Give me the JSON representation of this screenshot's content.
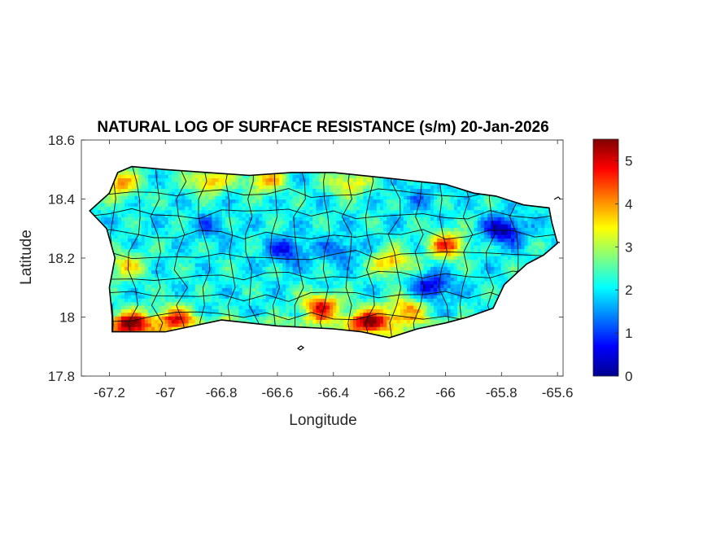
{
  "chart_data": {
    "type": "heatmap",
    "title": "NATURAL LOG OF SURFACE RESISTANCE (s/m) 20-Jan-2026",
    "xlabel": "Longitude",
    "ylabel": "Latitude",
    "xlim": [
      -67.3,
      -65.58
    ],
    "ylim": [
      17.8,
      18.6
    ],
    "xticks": [
      -67.2,
      -67,
      -66.8,
      -66.6,
      -66.4,
      -66.2,
      -66,
      -65.8,
      -65.6
    ],
    "xtick_labels": [
      "-67.2",
      "-67",
      "-66.8",
      "-66.6",
      "-66.4",
      "-66.2",
      "-66",
      "-65.8",
      "-65.6"
    ],
    "yticks": [
      17.8,
      18,
      18.2,
      18.4,
      18.6
    ],
    "ytick_labels": [
      "17.8",
      "18",
      "18.2",
      "18.4",
      "18.6"
    ],
    "colorbar": {
      "colormap": "jet",
      "range": [
        0,
        5.5
      ],
      "ticks": [
        0,
        1,
        2,
        3,
        4,
        5
      ],
      "tick_labels": [
        "0",
        "1",
        "2",
        "3",
        "4",
        "5"
      ]
    },
    "island_outline": [
      [
        -67.27,
        18.36
      ],
      [
        -67.2,
        18.42
      ],
      [
        -67.17,
        18.49
      ],
      [
        -67.12,
        18.51
      ],
      [
        -67.0,
        18.5
      ],
      [
        -66.85,
        18.49
      ],
      [
        -66.7,
        18.48
      ],
      [
        -66.55,
        18.49
      ],
      [
        -66.4,
        18.49
      ],
      [
        -66.2,
        18.47
      ],
      [
        -66.1,
        18.46
      ],
      [
        -66.0,
        18.45
      ],
      [
        -65.9,
        18.42
      ],
      [
        -65.82,
        18.41
      ],
      [
        -65.72,
        18.38
      ],
      [
        -65.63,
        18.37
      ],
      [
        -65.62,
        18.32
      ],
      [
        -65.6,
        18.25
      ],
      [
        -65.65,
        18.21
      ],
      [
        -65.71,
        18.18
      ],
      [
        -65.79,
        18.11
      ],
      [
        -65.83,
        18.03
      ],
      [
        -65.92,
        18.0
      ],
      [
        -66.0,
        17.98
      ],
      [
        -66.1,
        17.96
      ],
      [
        -66.2,
        17.93
      ],
      [
        -66.3,
        17.95
      ],
      [
        -66.4,
        17.96
      ],
      [
        -66.6,
        17.97
      ],
      [
        -66.8,
        17.99
      ],
      [
        -66.9,
        17.97
      ],
      [
        -67.0,
        17.95
      ],
      [
        -67.1,
        17.95
      ],
      [
        -67.19,
        17.95
      ],
      [
        -67.19,
        18.0
      ],
      [
        -67.2,
        18.1
      ],
      [
        -67.18,
        18.2
      ],
      [
        -67.21,
        18.3
      ]
    ],
    "hotspots": [
      {
        "lon": -67.13,
        "lat": 17.97,
        "value": 5.2
      },
      {
        "lon": -66.97,
        "lat": 17.99,
        "value": 4.3
      },
      {
        "lon": -66.45,
        "lat": 18.03,
        "value": 4.8
      },
      {
        "lon": -66.28,
        "lat": 17.98,
        "value": 5.0
      },
      {
        "lon": -66.15,
        "lat": 18.02,
        "value": 4.0
      },
      {
        "lon": -66.0,
        "lat": 18.24,
        "value": 4.4
      },
      {
        "lon": -66.2,
        "lat": 18.18,
        "value": 3.9
      },
      {
        "lon": -66.85,
        "lat": 18.46,
        "value": 3.9
      },
      {
        "lon": -66.65,
        "lat": 18.46,
        "value": 3.8
      },
      {
        "lon": -66.35,
        "lat": 18.45,
        "value": 3.6
      },
      {
        "lon": -67.17,
        "lat": 18.45,
        "value": 4.0
      },
      {
        "lon": -67.15,
        "lat": 18.17,
        "value": 3.5
      }
    ],
    "coldspots": [
      {
        "lon": -65.8,
        "lat": 18.29,
        "value": 0.2
      },
      {
        "lon": -66.05,
        "lat": 18.1,
        "value": 0.5
      },
      {
        "lon": -66.57,
        "lat": 18.22,
        "value": 0.8
      },
      {
        "lon": -66.38,
        "lat": 18.22,
        "value": 1.2
      },
      {
        "lon": -66.85,
        "lat": 18.3,
        "value": 1.4
      },
      {
        "lon": -66.1,
        "lat": 18.4,
        "value": 1.6
      }
    ],
    "background_value": 2.1
  }
}
